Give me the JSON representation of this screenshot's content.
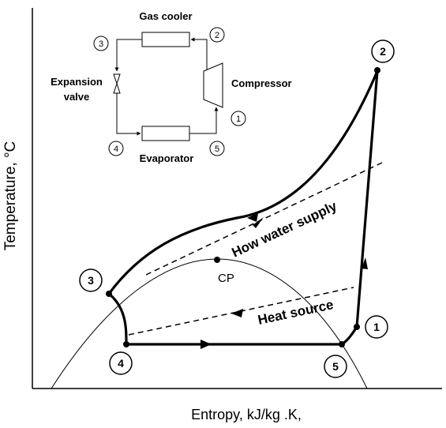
{
  "axes": {
    "ylabel": "Temperature, °C",
    "xlabel": "Entropy, kJ/kg .K,"
  },
  "inset": {
    "gas_cooler": "Gas cooler",
    "compressor": "Compressor",
    "expansion_valve_line1": "Expansion",
    "expansion_valve_line2": "valve",
    "evaporator": "Evaporator",
    "nodes": [
      "1",
      "2",
      "3",
      "4",
      "5"
    ]
  },
  "cycle": {
    "points": [
      "1",
      "2",
      "3",
      "4",
      "5"
    ],
    "critical_point": "CP"
  },
  "annotations": {
    "water_supply": "How water supply",
    "heat_source": "Heat source"
  }
}
